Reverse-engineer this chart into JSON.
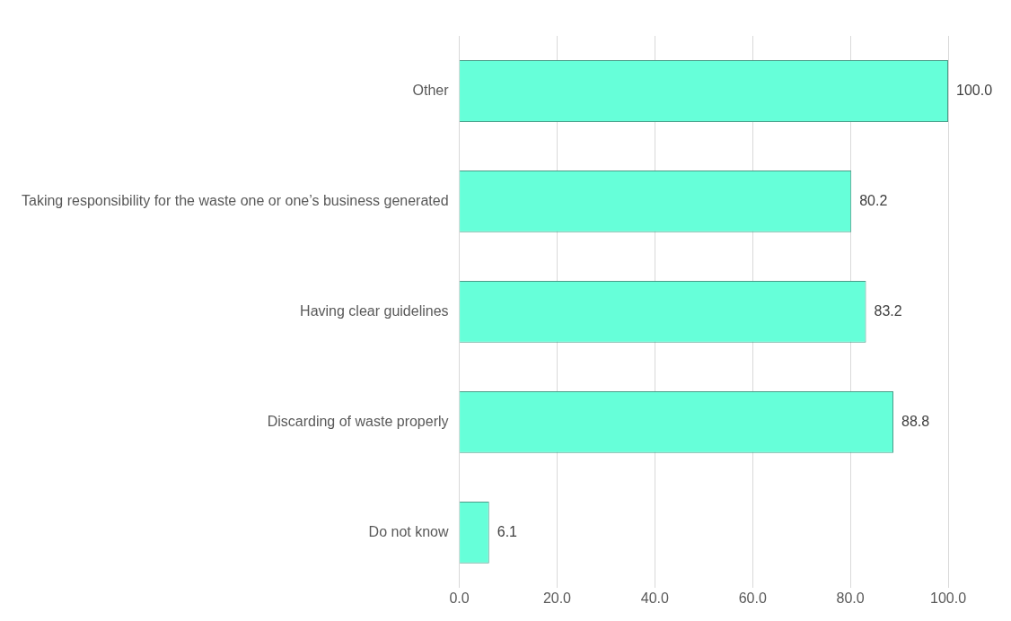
{
  "chart_data": {
    "type": "bar",
    "orientation": "horizontal",
    "categories": [
      "Other",
      "Taking responsibility for the waste one or one’s business generated",
      "Having clear guidelines",
      "Discarding of waste properly",
      "Do not know"
    ],
    "values": [
      100.0,
      80.2,
      83.2,
      88.8,
      6.1
    ],
    "value_labels": [
      "100.0",
      "80.2",
      "83.2",
      "88.8",
      "6.1"
    ],
    "color": "#66ffd9",
    "xlim": [
      0,
      100
    ],
    "xticks": [
      {
        "value": 0,
        "label": "0.0"
      },
      {
        "value": 20,
        "label": "20.0"
      },
      {
        "value": 40,
        "label": "40.0"
      },
      {
        "value": 60,
        "label": "60.0"
      },
      {
        "value": 80,
        "label": "80.0"
      },
      {
        "value": 100,
        "label": "100.0"
      }
    ],
    "grid": "x"
  }
}
